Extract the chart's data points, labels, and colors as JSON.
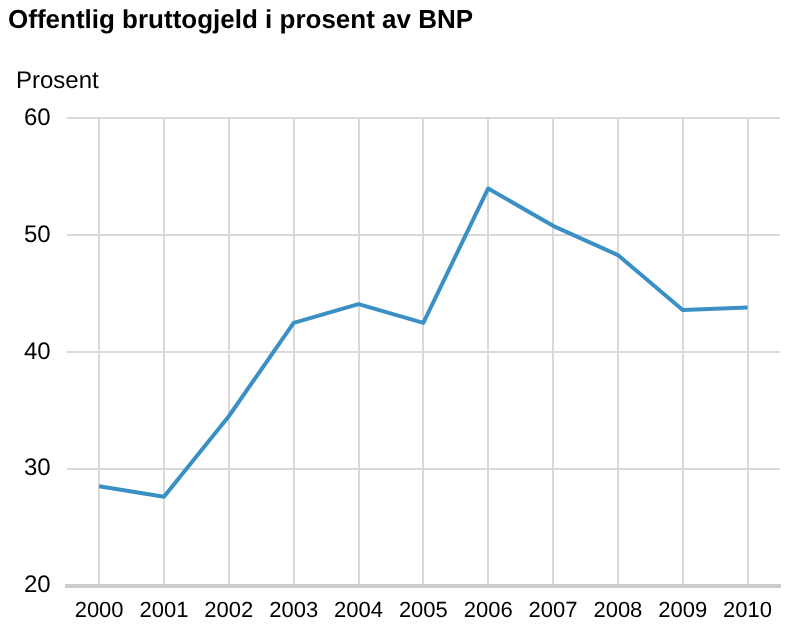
{
  "chart_data": {
    "type": "line",
    "title": "Offentlig bruttogjeld i prosent av BNP",
    "ylabel": "Prosent",
    "categories": [
      "2000",
      "2001",
      "2002",
      "2003",
      "2004",
      "2005",
      "2006",
      "2007",
      "2008",
      "2009",
      "2010"
    ],
    "series": [
      {
        "color": "#3a8fc4",
        "values": [
          28.5,
          27.6,
          34.5,
          42.5,
          44.1,
          42.5,
          54.0,
          50.8,
          48.3,
          43.6,
          43.8
        ]
      }
    ],
    "ylim": [
      20,
      60
    ],
    "yticks": [
      20,
      30,
      40,
      50,
      60
    ],
    "grid": true,
    "legend": false,
    "marker": "none",
    "line_style": "solid"
  }
}
